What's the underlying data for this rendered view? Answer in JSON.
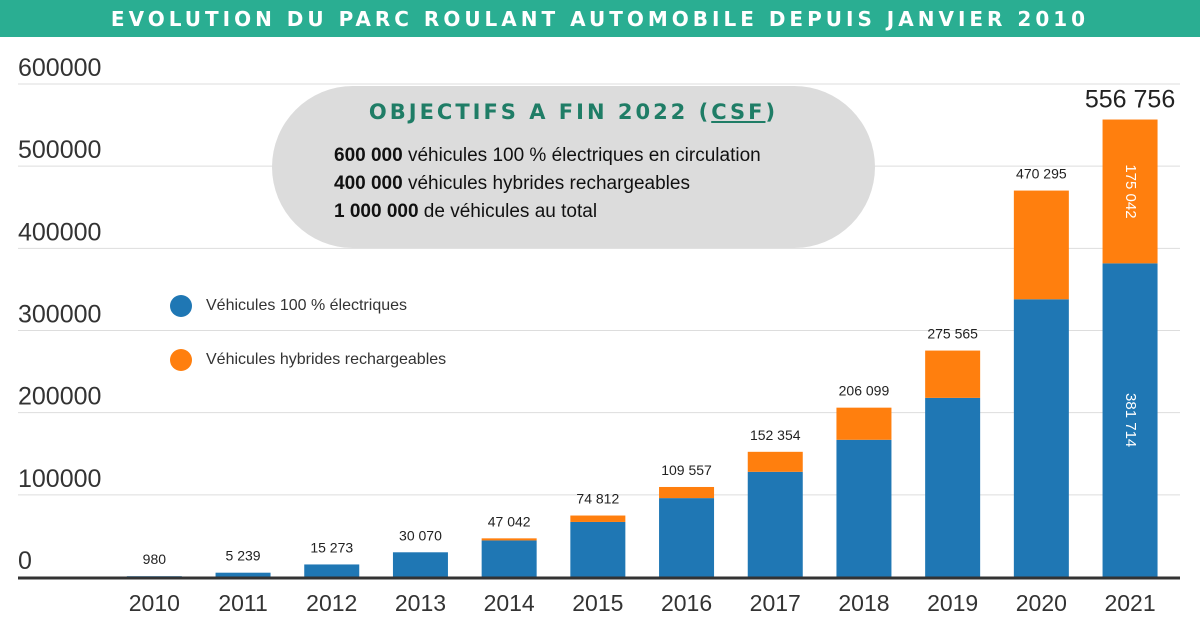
{
  "header": {
    "title": "EVOLUTION DU PARC ROULANT AUTOMOBILE DEPUIS JANVIER 2010"
  },
  "objectives": {
    "title_prefix": "OBJECTIFS A FIN 2022 (",
    "title_csf": "CSF",
    "title_suffix": ")",
    "lines": [
      {
        "number": "600 000",
        "text": " véhicules 100 % électriques en circulation"
      },
      {
        "number": "400 000",
        "text": " véhicules hybrides rechargeables"
      },
      {
        "number": "1 000 000",
        "text": " de véhicules au total"
      }
    ]
  },
  "colors": {
    "electric": "#1f77b4",
    "hybrid": "#ff7f0e",
    "grid": "#dddddd",
    "axis": "#333333",
    "banner": "#2aae92"
  },
  "chart_data": {
    "type": "bar",
    "stacked": true,
    "title": "EVOLUTION DU PARC ROULANT AUTOMOBILE DEPUIS JANVIER 2010",
    "categories": [
      "2010",
      "2011",
      "2012",
      "2013",
      "2014",
      "2015",
      "2016",
      "2017",
      "2018",
      "2019",
      "2020",
      "2021"
    ],
    "series": [
      {
        "name": "Véhicules 100 % électriques",
        "color": "#1f77b4",
        "values": [
          980,
          5239,
          15273,
          30070,
          44500,
          67000,
          96000,
          128000,
          167000,
          218000,
          338000,
          381714
        ]
      },
      {
        "name": "Véhicules hybrides rechargeables",
        "color": "#ff7f0e",
        "values": [
          0,
          0,
          0,
          0,
          2542,
          7812,
          13557,
          24354,
          39099,
          57565,
          132295,
          175042
        ]
      }
    ],
    "totals": [
      "980",
      "5 239",
      "15 273",
      "30 070",
      "47 042",
      "74 812",
      "109 557",
      "152 354",
      "206 099",
      "275 565",
      "470 295",
      "556 756"
    ],
    "inner_labels": {
      "electric_2021": "381 714",
      "hybrid_2021": "175 042"
    },
    "ylim": [
      0,
      600000
    ],
    "yticks": [
      "0",
      "100000",
      "200000",
      "300000",
      "400000",
      "500000",
      "600000"
    ],
    "grid": true,
    "legend": "left",
    "xlabel": "",
    "ylabel": ""
  }
}
